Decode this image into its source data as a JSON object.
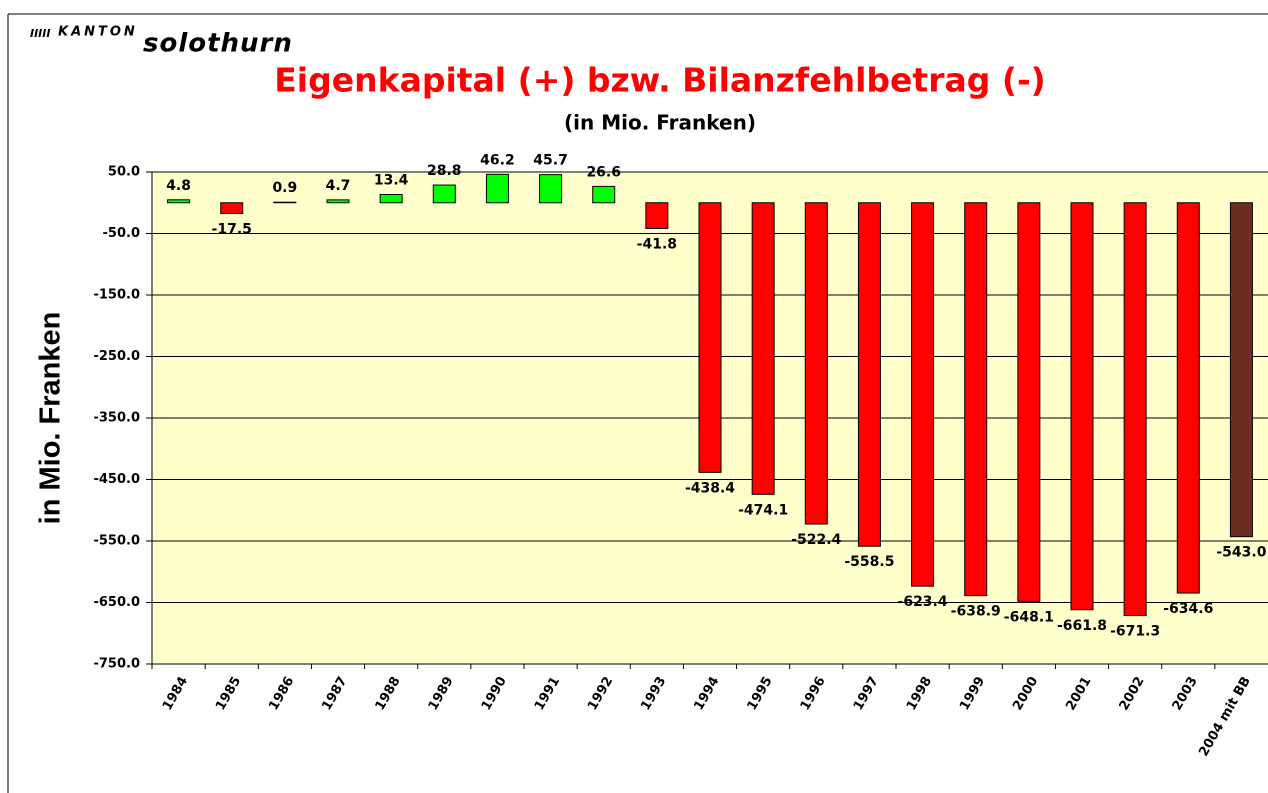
{
  "logo": {
    "kanton": "KANTON",
    "name": "solothurn"
  },
  "chart_data": {
    "type": "bar",
    "title": "Eigenkapital (+) bzw. Bilanzfehlbetrag (-)",
    "subtitle": "(in Mio. Franken)",
    "y_label": "in Mio. Franken",
    "categories": [
      "1984",
      "1985",
      "1986",
      "1987",
      "1988",
      "1989",
      "1990",
      "1991",
      "1992",
      "1993",
      "1994",
      "1995",
      "1996",
      "1997",
      "1998",
      "1999",
      "2000",
      "2001",
      "2002",
      "2003",
      "2004 mit BB"
    ],
    "values": [
      4.8,
      -17.5,
      0.9,
      4.7,
      13.4,
      28.8,
      46.2,
      45.7,
      26.6,
      -41.8,
      -438.4,
      -474.1,
      -522.4,
      -558.5,
      -623.4,
      -638.9,
      -648.1,
      -661.8,
      -671.3,
      -634.6,
      -543.0
    ],
    "value_labels": [
      "4.8",
      "-17.5",
      "0.9",
      "4.7",
      "13.4",
      "28.8",
      "46.2",
      "45.7",
      "26.6",
      "-41.8",
      "-438.4",
      "-474.1",
      "-522.4",
      "-558.5",
      "-623.4",
      "-638.9",
      "-648.1",
      "-661.8",
      "-671.3",
      "-634.6",
      "-543.0"
    ],
    "colors": [
      "#00ff00",
      "#ff0000",
      "#00ff00",
      "#00ff00",
      "#00ff00",
      "#00ff00",
      "#00ff00",
      "#00ff00",
      "#00ff00",
      "#ff0000",
      "#ff0000",
      "#ff0000",
      "#ff0000",
      "#ff0000",
      "#ff0000",
      "#ff0000",
      "#ff0000",
      "#ff0000",
      "#ff0000",
      "#ff0000",
      "#6b2e20"
    ],
    "ylim": [
      -750,
      50
    ],
    "yticks": [
      {
        "value": 50,
        "label": "50.0"
      },
      {
        "value": -50,
        "label": "-50.0"
      },
      {
        "value": -150,
        "label": "-150.0"
      },
      {
        "value": -250,
        "label": "-250.0"
      },
      {
        "value": -350,
        "label": "-350.0"
      },
      {
        "value": -450,
        "label": "-450.0"
      },
      {
        "value": -550,
        "label": "-550.0"
      },
      {
        "value": -650,
        "label": "-650.0"
      },
      {
        "value": -750,
        "label": "-750.0"
      }
    ],
    "grid": true
  }
}
